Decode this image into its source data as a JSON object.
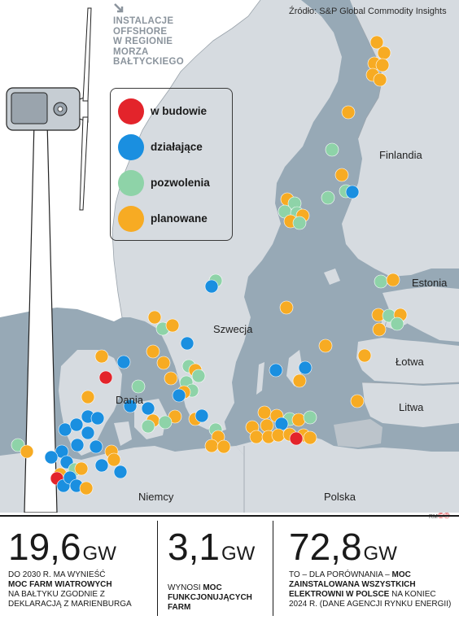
{
  "title_lines": [
    "INSTALACJE",
    "OFFSHORE",
    "W REGIONIE",
    "MORZA",
    "BAŁTYCKIEGO"
  ],
  "source": "Źródło: S&P Global Commodity Insights",
  "legend": [
    {
      "label": "w budowie",
      "color": "#e3242b"
    },
    {
      "label": "działające",
      "color": "#1a8fe0"
    },
    {
      "label": "pozwolenia",
      "color": "#8ed3a8"
    },
    {
      "label": "planowane",
      "color": "#f7ab23"
    }
  ],
  "countries": {
    "finland": "Finlandia",
    "estonia": "Estonia",
    "sweden": "Szwecja",
    "latvia": "Łotwa",
    "lithuania": "Litwa",
    "denmark": "Dania",
    "germany": "Niemcy",
    "poland": "Polska"
  },
  "credit": "RM",
  "stats": [
    {
      "value": "19,6",
      "unit": "GW",
      "desc_pre": "DO 2030 R. MA WYNIEŚĆ",
      "desc_bold": "MOC FARM WIATROWYCH",
      "desc_post": "NA BAŁTYKU ZGODNIE Z DEKLARACJĄ Z MARIENBURGA"
    },
    {
      "value": "3,1",
      "unit": "GW",
      "desc_pre": "WYNOSI",
      "desc_bold": "MOC FUNKCJONUJĄCYCH FARM",
      "desc_post": ""
    },
    {
      "value": "72,8",
      "unit": "GW",
      "desc_pre": "TO – DLA PORÓWNANIA –",
      "desc_bold": "MOC ZAINSTALOWANA WSZYSTKICH ELEKTROWNI W POLSCE",
      "desc_post": "NA KONIEC 2024 R. (DANE AGENCJI RYNKU ENERGII)"
    }
  ]
}
